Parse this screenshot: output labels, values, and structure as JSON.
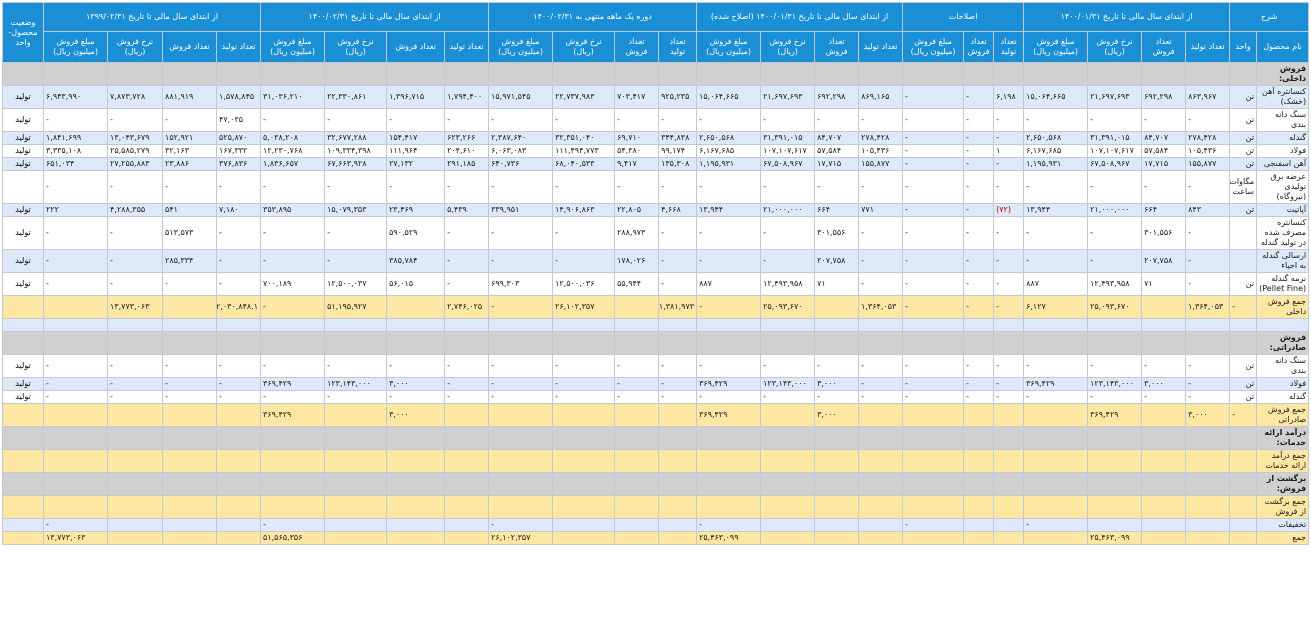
{
  "header": {
    "groups": [
      {
        "label": "شرح",
        "span": 2
      },
      {
        "label": "از ابتدای سال مالی تا تاریخ ۱۴۰۰/۰۱/۳۱",
        "span": 4
      },
      {
        "label": "اصلاحات",
        "span": 3
      },
      {
        "label": "از ابتدای سال مالی تا تاریخ ۱۴۰۰/۰۱/۳۱ (اصلاح شده)",
        "span": 4
      },
      {
        "label": "دوره یک ماهه منتهی به ۱۴۰۰/۰۲/۳۱",
        "span": 4
      },
      {
        "label": "از ابتدای سال مالی تا تاریخ ۱۴۰۰/۰۲/۳۱",
        "span": 4
      },
      {
        "label": "از ابتدای سال مالی تا تاریخ ۱۳۹۹/۰۲/۳۱",
        "span": 4
      },
      {
        "label": "وضعیت محصول-واحد",
        "span": 1
      }
    ],
    "subcols": [
      "نام محصول",
      "واحد",
      "تعداد تولید",
      "تعداد فروش",
      "نرخ فروش (ریال)",
      "مبلغ فروش (میلیون ریال)",
      "تعداد تولید",
      "تعداد فروش",
      "مبلغ فروش (میلیون ریال)",
      "تعداد تولید",
      "تعداد فروش",
      "نرخ فروش (ریال)",
      "مبلغ فروش (میلیون ریال)",
      "تعداد تولید",
      "تعداد فروش",
      "نرخ فروش (ریال)",
      "مبلغ فروش (میلیون ریال)",
      "تعداد تولید",
      "تعداد فروش",
      "نرخ فروش (ریال)",
      "مبلغ فروش (میلیون ریال)",
      "تعداد تولید",
      "تعداد فروش",
      "نرخ فروش (ریال)",
      "مبلغ فروش (میلیون ریال)"
    ]
  },
  "rows": [
    {
      "type": "section",
      "cls": "g",
      "label": "فروش داخلی:"
    },
    {
      "type": "data",
      "cls": "b",
      "cells": [
        "کنسانتره آهن (خشک)",
        "تن",
        "۸۶۳,۹۶۷",
        "۶۹۲,۲۹۸",
        "۲۱,۶۹۷,۶۹۳",
        "۱۵,۰۶۴,۶۶۵",
        "۶,۱۹۸",
        "-",
        "-",
        "۸۶۹,۱۶۵",
        "۶۹۲,۲۹۸",
        "۲۱,۶۹۷,۶۹۳",
        "۱۵,۰۶۴,۶۶۵",
        "۹۲۵,۲۳۵",
        "۷۰۳,۴۱۷",
        "۲۲,۷۳۷,۹۸۳",
        "۱۵,۹۷۱,۵۴۵",
        "۱,۷۹۴,۴۰۰",
        "۱,۳۹۶,۷۱۵",
        "۲۲,۳۳۰,۸۶۱",
        "۳۱,۰۳۶,۲۱۰",
        "۱,۵۷۸,۸۴۵",
        "۸۸۱,۹۱۹",
        "۷,۸۷۳,۷۲۸",
        "۶,۹۴۳,۹۹۰",
        "تولید"
      ]
    },
    {
      "type": "data",
      "cls": "w",
      "cells": [
        "سنگ دانه بندی",
        "تن",
        "-",
        "-",
        "-",
        "-",
        "-",
        "-",
        "-",
        "-",
        "-",
        "-",
        "-",
        "-",
        "-",
        "-",
        "-",
        "-",
        "-",
        "-",
        "-",
        "۴۷,۰۳۵",
        "-",
        "-",
        "-",
        "تولید"
      ]
    },
    {
      "type": "data",
      "cls": "b",
      "cells": [
        "گندله",
        "تن",
        "۲۷۸,۴۲۸",
        "۸۴,۷۰۷",
        "۳۱,۳۹۱,۰۱۵",
        "۲,۶۵۰,۵۶۸",
        "-",
        "-",
        "-",
        "۲۷۸,۴۲۸",
        "۸۴,۷۰۷",
        "۳۱,۳۹۱,۰۱۵",
        "۲,۶۵۰,۵۶۸",
        "۳۴۴,۸۳۸",
        "۶۹,۷۱۰",
        "۳۲,۳۵۱,۰۴۰",
        "۲,۳۸۷,۶۴۰",
        "۶۲۳,۲۶۶",
        "۱۵۴,۴۱۷",
        "۳۲,۶۷۷,۲۸۸",
        "۵,۰۳۸,۲۰۸",
        "۵۲۵,۸۷۰",
        "۱۵۲,۹۲۱",
        "۱۳,۰۴۳,۶۷۹",
        "۱,۸۴۱,۶۹۹",
        "تولید"
      ]
    },
    {
      "type": "data",
      "cls": "w",
      "cells": [
        "فولاد",
        "تن",
        "۱۰۵,۴۳۶",
        "۵۷,۵۸۴",
        "۱۰۷,۱۰۷,۶۱۷",
        "۶,۱۶۷,۶۸۵",
        "۱",
        "-",
        "-",
        "۱۰۵,۴۳۶",
        "۵۷,۵۸۴",
        "۱۰۷,۱۰۷,۶۱۷",
        "۶,۱۶۷,۶۸۵",
        "۹۹,۱۷۴",
        "۵۴,۳۸۰",
        "۱۱۱,۴۹۴,۷۷۳",
        "۶,۰۶۳,۰۸۳",
        "۲۰۴,۶۱۰",
        "۱۱۱,۹۶۴",
        "۱۰۹,۳۳۴,۳۹۸",
        "۱۲,۲۳۰,۷۶۸",
        "۱۶۷,۳۳۲",
        "۳۲,۱۶۳",
        "۲۵,۵۸۵,۲۷۹",
        "۳,۳۳۵,۱۰۸",
        "تولید"
      ]
    },
    {
      "type": "data",
      "cls": "b",
      "cells": [
        "آهن اسفنجی",
        "تن",
        "۱۵۵,۸۷۷",
        "۱۷,۷۱۵",
        "۶۷,۵۰۸,۹۶۷",
        "۱,۱۹۵,۹۳۱",
        "-",
        "-",
        "-",
        "۱۵۵,۸۷۷",
        "۱۷,۷۱۵",
        "۶۷,۵۰۸,۹۶۷",
        "۱,۱۹۵,۹۳۱",
        "۱۳۵,۳۰۸",
        "۹,۴۱۷",
        "۶۸,۰۴۰,۵۳۳",
        "۶۴۰,۷۳۶",
        "۲۹۱,۱۸۵",
        "۲۷,۱۳۲",
        "۶۷,۶۶۳,۹۲۸",
        "۱,۸۳۶,۶۵۷",
        "۳۷۶,۸۳۶",
        "۲۳,۸۸۶",
        "۲۷,۲۵۵,۸۸۳",
        "۶۵۱,۰۳۴",
        "تولید"
      ]
    },
    {
      "type": "data",
      "cls": "w",
      "cells": [
        "عرضه برق تولیدی (نیروگاه)",
        "مگاوات ساعت",
        "-",
        "-",
        "-",
        "-",
        "-",
        "-",
        "-",
        "-",
        "-",
        "-",
        "-",
        "-",
        "-",
        "-",
        "-",
        "-",
        "-",
        "-",
        "-",
        "-",
        "-",
        "-",
        "-",
        ""
      ]
    },
    {
      "type": "data",
      "cls": "b",
      "red": 6,
      "cells": [
        "آپاتیت",
        "تن",
        "۸۴۳",
        "۶۶۴",
        "۲۱,۰۰۰,۰۰۰",
        "۱۳,۹۴۴",
        "(۷۲)",
        "-",
        "-",
        "۷۷۱",
        "۶۶۴",
        "۲۱,۰۰۰,۰۰۰",
        "۱۳,۹۴۴",
        "۴,۶۶۸",
        "۲۲,۸۰۵",
        "۱۴,۹۰۶,۸۶۳",
        "۳۳۹,۹۵۱",
        "۵,۴۳۹",
        "۲۳,۴۶۹",
        "۱۵,۰۷۹,۳۵۳",
        "۳۵۳,۸۹۵",
        "۷,۱۸۰",
        "۵۴۱",
        "۴,۲۸۸,۳۵۵",
        "۲۲۲",
        "تولید"
      ]
    },
    {
      "type": "data",
      "cls": "w",
      "cells": [
        "کنسانتره مصرف شده در تولید گندله",
        "",
        "-",
        "۳۰۱,۵۵۶",
        "-",
        "-",
        "-",
        "-",
        "-",
        "-",
        "۳۰۱,۵۵۶",
        "-",
        "-",
        "-",
        "۲۸۸,۹۷۳",
        "-",
        "-",
        "-",
        "۵۹۰,۵۲۹",
        "-",
        "-",
        "-",
        "۵۱۳,۵۷۳",
        "-",
        "-",
        "تولید"
      ]
    },
    {
      "type": "data",
      "cls": "b",
      "cells": [
        "ارسالی گندله به احیاء",
        "",
        "-",
        "۲۰۷,۷۵۸",
        "-",
        "-",
        "-",
        "-",
        "-",
        "-",
        "۲۰۷,۷۵۸",
        "-",
        "-",
        "-",
        "۱۷۸,۰۲۶",
        "-",
        "-",
        "-",
        "۳۸۵,۷۸۴",
        "-",
        "-",
        "-",
        "۲۸۵,۳۳۴",
        "-",
        "-",
        "تولید"
      ]
    },
    {
      "type": "data",
      "cls": "w",
      "cells": [
        "نرمه گندله (Pellet Fine)",
        "تن",
        "-",
        "۷۱",
        "۱۲,۴۹۳,۹۵۸",
        "۸۸۷",
        "-",
        "-",
        "-",
        "-",
        "۷۱",
        "۱۲,۴۹۳,۹۵۸",
        "۸۸۷",
        "-",
        "۵۵,۹۴۴",
        "۱۲,۵۰۰,۰۳۶",
        "۶۹۹,۳۰۳",
        "-",
        "۵۶,۰۱۵",
        "۱۲,۵۰۰,۰۳۷",
        "۷۰۰,۱۸۹",
        "-",
        "-",
        "-",
        "-",
        "تولید"
      ]
    },
    {
      "type": "total",
      "cls": "y",
      "label": "جمع فروش داخلی",
      "cells": [
        "",
        "-",
        "۱,۳۶۴,۰۵۳",
        "",
        "۲۵,۰۹۳,۶۷۰",
        "۶,۱۲۷",
        "-",
        "-",
        "-",
        "۱,۳۶۴,۰۵۳",
        "",
        "۲۵,۰۹۳,۶۷۰",
        "-",
        "۱,۳۸۱,۹۷۳",
        "",
        "۲۶,۱۰۲,۳۵۷",
        "-",
        "۲,۷۴۶,۰۲۵",
        "",
        "۵۱,۱۹۵,۹۲۷",
        "-",
        "۲,۰۳۰,۸۴۸.۱",
        "",
        "۱۳,۷۷۳,۰۶۳",
        ""
      ]
    },
    {
      "type": "sep",
      "cls": "b"
    },
    {
      "type": "section",
      "cls": "g",
      "label": "فروش صادراتی:"
    },
    {
      "type": "data",
      "cls": "w",
      "cells": [
        "سنگ دانه بندی",
        "تن",
        "-",
        "-",
        "-",
        "-",
        "-",
        "-",
        "-",
        "-",
        "-",
        "-",
        "-",
        "-",
        "-",
        "-",
        "-",
        "-",
        "-",
        "-",
        "-",
        "-",
        "-",
        "-",
        "-",
        "تولید"
      ]
    },
    {
      "type": "data",
      "cls": "b",
      "cells": [
        "فولاد",
        "تن",
        "-",
        "۳,۰۰۰",
        "۱۲۳,۱۴۳,۰۰۰",
        "۳۶۹,۴۲۹",
        "-",
        "-",
        "-",
        "-",
        "۳,۰۰۰",
        "۱۲۳,۱۴۳,۰۰۰",
        "۳۶۹,۴۲۹",
        "-",
        "-",
        "-",
        "-",
        "-",
        "۳,۰۰۰",
        "۱۲۳,۱۴۳,۰۰۰",
        "۳۶۹,۴۲۹",
        "-",
        "-",
        "-",
        "-",
        "تولید"
      ]
    },
    {
      "type": "data",
      "cls": "w",
      "cells": [
        "گندله",
        "تن",
        "-",
        "-",
        "-",
        "-",
        "-",
        "-",
        "-",
        "-",
        "-",
        "-",
        "-",
        "-",
        "-",
        "-",
        "-",
        "-",
        "-",
        "-",
        "-",
        "-",
        "-",
        "-",
        "-",
        "تولید"
      ]
    },
    {
      "type": "total",
      "cls": "y",
      "label": "جمع فروش صادراتی",
      "cells": [
        "",
        "-",
        "۳,۰۰۰",
        "",
        "۳۶۹,۴۲۹",
        "",
        "",
        "",
        "",
        "",
        "۳,۰۰۰",
        "",
        "۳۶۹,۴۲۹",
        "",
        "",
        "",
        "",
        "",
        "۳,۰۰۰",
        "",
        "۳۶۹,۴۲۹",
        "",
        "",
        "",
        "",
        ""
      ]
    },
    {
      "type": "section",
      "cls": "g",
      "label": "درآمد ارائه خدمات:"
    },
    {
      "type": "total",
      "cls": "y",
      "label": "جمع درآمد ارائه خدمات",
      "cells": [
        "",
        "",
        "",
        "",
        "",
        "",
        "",
        "",
        "",
        "",
        "",
        "",
        "",
        "",
        "",
        "",
        "",
        "",
        "",
        "",
        "",
        "",
        "",
        "",
        "",
        ""
      ]
    },
    {
      "type": "section",
      "cls": "g",
      "label": "برگشت از فروش:"
    },
    {
      "type": "total",
      "cls": "y",
      "label": "جمع برگشت از فروش",
      "cells": [
        "",
        "",
        "",
        "",
        "",
        "",
        "",
        "",
        "",
        "",
        "",
        "",
        "",
        "",
        "",
        "",
        "",
        "",
        "",
        "",
        "",
        "",
        "",
        "",
        "",
        ""
      ]
    },
    {
      "type": "data",
      "cls": "b",
      "cells": [
        "تخفیفات",
        "",
        "",
        "",
        "",
        "-",
        "",
        "",
        "-",
        "",
        "",
        "",
        "-",
        "",
        "",
        "",
        "-",
        "",
        "",
        "",
        "-",
        "",
        "",
        "",
        "-",
        ""
      ]
    },
    {
      "type": "total",
      "cls": "y",
      "label": "جمع",
      "cells": [
        "",
        "",
        "",
        "",
        "۲۵,۴۶۳,۰۹۹",
        "",
        "",
        "",
        "",
        "",
        "",
        "",
        "۲۵,۴۶۳,۰۹۹",
        "",
        "",
        "",
        "۲۶,۱۰۲,۳۵۷",
        "",
        "",
        "",
        "۵۱,۵۶۵,۳۵۶",
        "",
        "",
        "",
        "۱۳,۷۷۳,۰۶۳",
        ""
      ]
    }
  ]
}
